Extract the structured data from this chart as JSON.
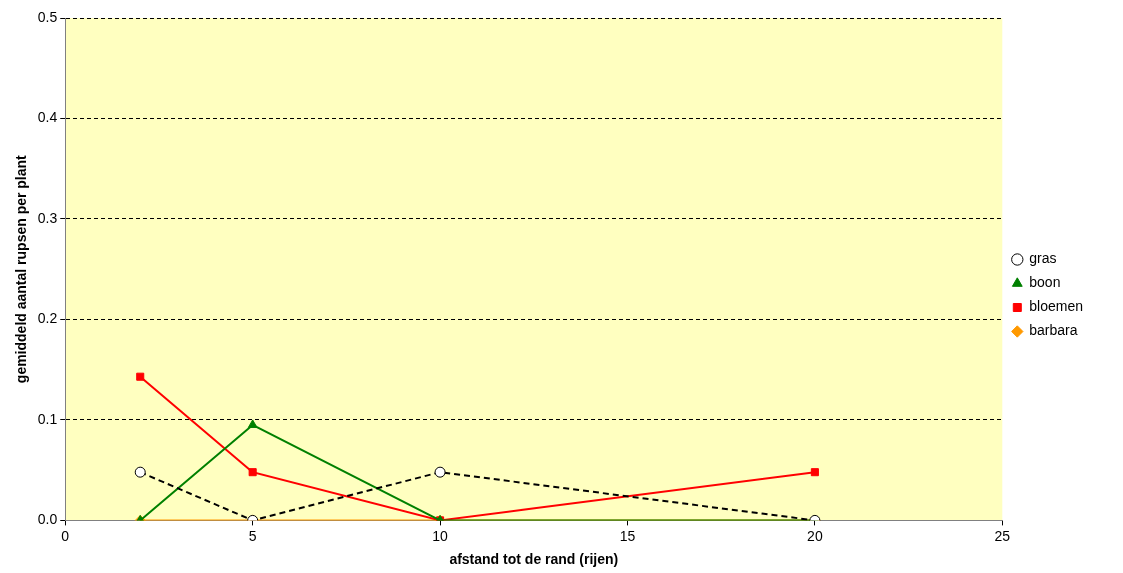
{
  "chart_data": {
    "type": "line",
    "xlabel": "afstand tot de rand (rijen)",
    "ylabel": "gemiddeld aantal rupsen per plant",
    "x": [
      2,
      5,
      10,
      20
    ],
    "series": [
      {
        "name": "barbara",
        "color": "#ff9900",
        "marker": "diamond",
        "line_style": "solid",
        "values": [
          0,
          0,
          0,
          0
        ]
      },
      {
        "name": "bloemen",
        "color": "#ff0000",
        "marker": "square",
        "line_style": "solid",
        "values": [
          0.143,
          0.048,
          0,
          0.048
        ]
      },
      {
        "name": "boon",
        "color": "#008000",
        "marker": "triangle",
        "line_style": "solid",
        "values": [
          0,
          0.095,
          0,
          0
        ]
      },
      {
        "name": "gras",
        "color": "#000000",
        "marker": "circle",
        "line_style": "dashed",
        "values": [
          0.048,
          0,
          0.048,
          0
        ]
      }
    ],
    "xlim": [
      0,
      25
    ],
    "xticks": [
      0,
      5,
      10,
      15,
      20,
      25
    ],
    "ylim": [
      0,
      0.5
    ],
    "yticks": [
      {
        "value": 0,
        "label": "0.0"
      },
      {
        "value": 0.1,
        "label": "0.1"
      },
      {
        "value": 0.2,
        "label": "0.2"
      },
      {
        "value": 0.3,
        "label": "0.3"
      },
      {
        "value": 0.4,
        "label": "0.4"
      },
      {
        "value": 0.5,
        "label": "0.5"
      }
    ],
    "grid": "y",
    "legend": "right"
  }
}
